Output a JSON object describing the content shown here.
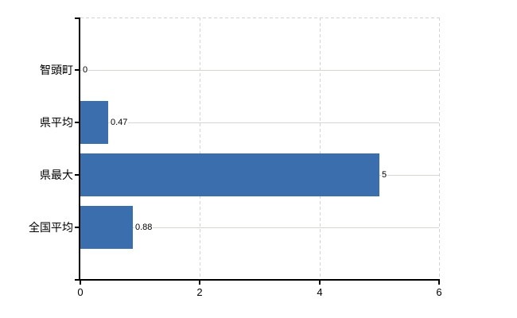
{
  "chart_data": {
    "type": "bar",
    "orientation": "horizontal",
    "categories": [
      "智頭町",
      "県平均",
      "県最大",
      "全国平均"
    ],
    "values": [
      0,
      0.47,
      5,
      0.88
    ],
    "value_labels": [
      "0",
      "0.47",
      "5",
      "0.88"
    ],
    "xlim": [
      0,
      6
    ],
    "x_ticks": [
      0,
      2,
      4,
      6
    ],
    "x_tick_labels": [
      "0",
      "2",
      "4",
      "6"
    ],
    "grid": {
      "vertical_gridlines": "dashed",
      "horizontal_category_lines": "solid",
      "top_border": "dashed",
      "legend": "none"
    },
    "colors": {
      "bar": "#3b6ead",
      "gridline": "#d4d6d2",
      "axis": "#000000",
      "text": "#000000",
      "background": "#ffffff"
    }
  }
}
